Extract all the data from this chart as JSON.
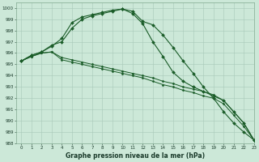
{
  "xlabel": "Graphe pression niveau de la mer (hPa)",
  "background_color": "#cce8d8",
  "grid_color": "#a8c8b8",
  "line_color": "#1a5c28",
  "xlim": [
    -0.5,
    23
  ],
  "ylim": [
    988,
    1000.5
  ],
  "yticks": [
    988,
    989,
    990,
    991,
    992,
    993,
    994,
    995,
    996,
    997,
    998,
    999,
    1000
  ],
  "xticks": [
    0,
    1,
    2,
    3,
    4,
    5,
    6,
    7,
    8,
    9,
    10,
    11,
    12,
    13,
    14,
    15,
    16,
    17,
    18,
    19,
    20,
    21,
    22,
    23
  ],
  "series": [
    [
      995.3,
      995.8,
      996.1,
      996.6,
      997.3,
      998.7,
      999.2,
      999.4,
      999.6,
      999.8,
      999.9,
      999.7,
      998.8,
      998.5,
      997.6,
      996.5,
      995.3,
      994.2,
      993.0,
      992.0,
      990.8,
      989.8,
      989.0,
      988.3
    ],
    [
      995.3,
      995.8,
      996.1,
      996.7,
      997.0,
      998.2,
      999.0,
      999.3,
      999.5,
      999.7,
      999.9,
      999.5,
      998.6,
      997.0,
      995.7,
      994.3,
      993.5,
      993.0,
      992.6,
      992.2,
      991.8,
      990.8,
      989.8,
      988.3
    ],
    [
      995.3,
      995.7,
      996.0,
      996.1,
      995.6,
      995.4,
      995.2,
      995.0,
      994.8,
      994.6,
      994.4,
      994.2,
      994.0,
      993.8,
      993.5,
      993.3,
      993.0,
      992.8,
      992.6,
      992.3,
      991.8,
      990.8,
      989.8,
      988.3
    ],
    [
      995.3,
      995.7,
      996.0,
      996.1,
      995.4,
      995.2,
      995.0,
      994.8,
      994.6,
      994.4,
      994.2,
      994.0,
      993.8,
      993.5,
      993.2,
      993.0,
      992.7,
      992.5,
      992.2,
      992.0,
      991.5,
      990.5,
      989.5,
      988.3
    ]
  ],
  "marker_series": [
    0,
    1
  ],
  "figsize": [
    3.2,
    2.0
  ],
  "dpi": 100
}
